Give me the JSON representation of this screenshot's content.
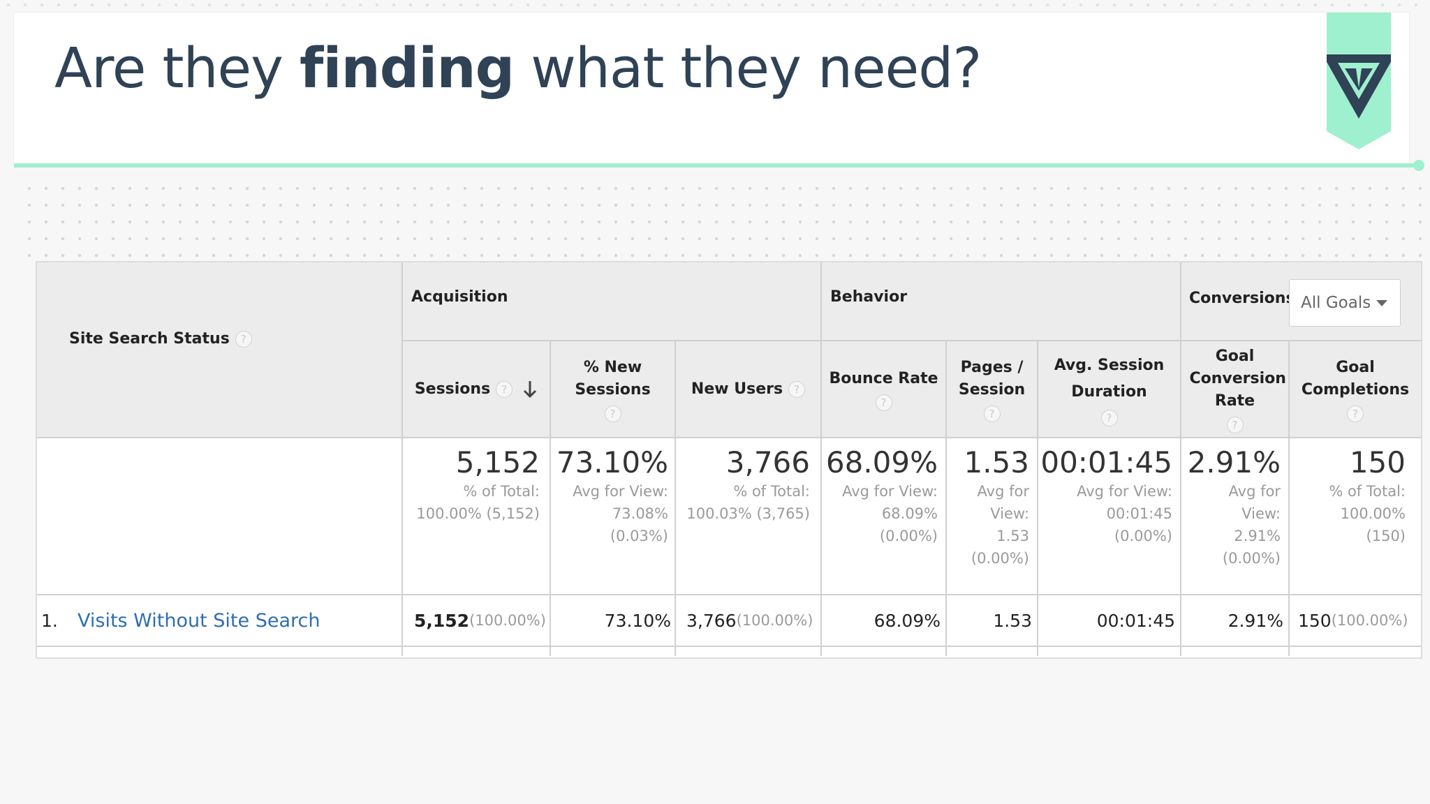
{
  "slide": {
    "title_pre": "Are they ",
    "title_bold": "finding",
    "title_post": " what they need?",
    "accent_color": "#9ff0cf",
    "logo_icon": "triangle-logo-icon"
  },
  "report": {
    "dimension_header": "Site Search Status",
    "groups": {
      "acquisition": "Acquisition",
      "behavior": "Behavior",
      "conversions": "Conversions"
    },
    "goal_selector": "All Goals",
    "columns": {
      "sessions": "Sessions",
      "new_sessions": "% New Sessions",
      "new_users": "New Users",
      "bounce_rate": "Bounce Rate",
      "pages_session": "Pages / Session",
      "avg_duration": "Avg. Session Duration",
      "goal_conv_rate": "Goal Conversion Rate",
      "goal_completions": "Goal Completions"
    },
    "totals": {
      "sessions": {
        "value": "5,152",
        "sub": "% of Total: 100.00% (5,152)"
      },
      "new_sessions": {
        "value": "73.10%",
        "sub": "Avg for View: 73.08% (0.03%)"
      },
      "new_users": {
        "value": "3,766",
        "sub": "% of Total: 100.03% (3,765)"
      },
      "bounce_rate": {
        "value": "68.09%",
        "sub": "Avg for View: 68.09% (0.00%)"
      },
      "pages_session": {
        "value": "1.53",
        "sub": "Avg for View: 1.53 (0.00%)"
      },
      "avg_duration": {
        "value": "00:01:45",
        "sub": "Avg for View: 00:01:45 (0.00%)"
      },
      "goal_conv_rate": {
        "value": "2.91%",
        "sub": "Avg for View: 2.91% (0.00%)"
      },
      "goal_completions": {
        "value": "150",
        "sub": "% of Total: 100.00% (150)"
      }
    },
    "rows": [
      {
        "index": "1.",
        "label": "Visits Without Site Search",
        "sessions": "5,152",
        "sessions_pct": "(100.00%)",
        "new_sessions": "73.10%",
        "new_users": "3,766",
        "new_users_pct": "(100.00%)",
        "bounce_rate": "68.09%",
        "pages_session": "1.53",
        "avg_duration": "00:01:45",
        "goal_conv_rate": "2.91%",
        "goal_completions": "150",
        "goal_completions_pct": "(100.00%)"
      }
    ]
  }
}
